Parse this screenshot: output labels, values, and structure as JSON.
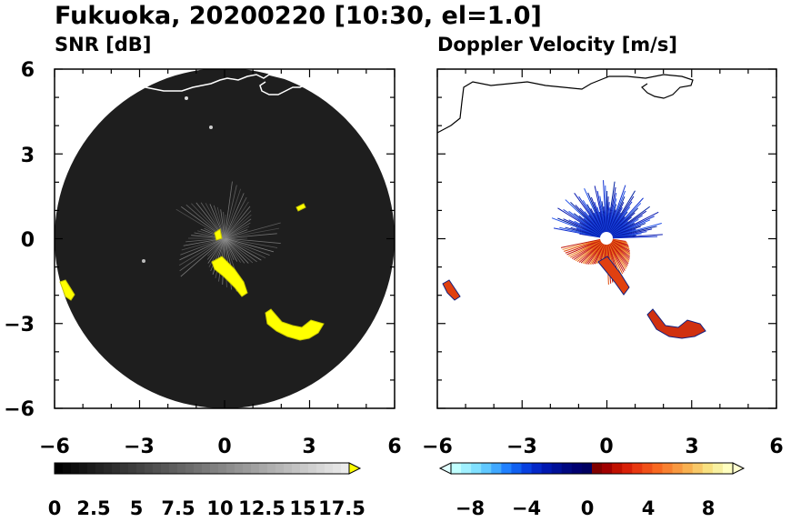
{
  "figure": {
    "title": "Fukuoka, 20200220 [10:30, el=1.0]"
  },
  "chart_data": [
    {
      "type": "heatmap",
      "title": "SNR [dB]",
      "xlim": [
        -6,
        6
      ],
      "ylim": [
        -6,
        6
      ],
      "x_ticks": [
        "−6",
        "−3",
        "0",
        "3",
        "6"
      ],
      "y_ticks": [
        "6",
        "3",
        "0",
        "−3",
        "−6"
      ],
      "colorbar": {
        "min": 0,
        "max": 18,
        "extend": "max",
        "colors": "black-to-white greyscale, yellow above max",
        "tick_labels": [
          "0",
          "2.5",
          "5",
          "7.5",
          "10",
          "12.5",
          "15",
          "17.5"
        ],
        "over_color": "#ffff00"
      },
      "strong_echo_color": "#ffff00",
      "background_color": "#1e1e1e"
    },
    {
      "type": "heatmap",
      "title": "Doppler Velocity [m/s]",
      "xlim": [
        -6,
        6
      ],
      "ylim": [
        -6,
        6
      ],
      "x_ticks": [
        "−6",
        "−3",
        "0",
        "3",
        "6"
      ],
      "y_ticks": [],
      "colorbar": {
        "min": -10,
        "max": 10,
        "extend": "both",
        "colors": "light cyan → blue → dark navy (negative), dark red → orange → light yellow (positive)",
        "tick_labels": [
          "−8",
          "−4",
          "0",
          "4",
          "8"
        ]
      },
      "approaching_color": "#1030d0",
      "receding_color": "#e05010"
    }
  ]
}
